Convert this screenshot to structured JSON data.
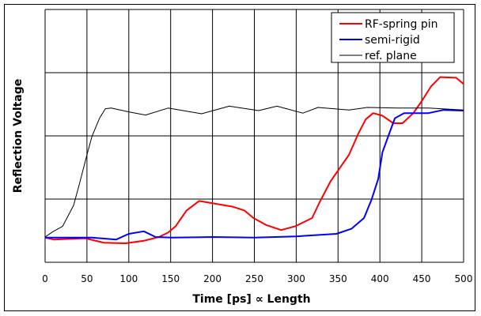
{
  "chart_data": {
    "type": "line",
    "title": "",
    "xlabel": "Time [ps]  ∝  Length",
    "ylabel": "Reflection Voltage",
    "xlim": [
      0,
      500
    ],
    "ylim": [
      0,
      4
    ],
    "xticks": [
      0,
      50,
      100,
      150,
      200,
      250,
      300,
      350,
      400,
      450,
      500
    ],
    "xtick_labels": [
      "0",
      "50",
      "100",
      "150",
      "200",
      "250",
      "300",
      "350",
      "400",
      "450",
      "500"
    ],
    "yticks": [
      0,
      1,
      2,
      3,
      4
    ],
    "grid": true,
    "legend_position": "top-right",
    "series": [
      {
        "name": "RF-spring pin",
        "color": "#ff0000",
        "x": [
          0,
          10,
          48,
          70,
          96,
          118,
          136,
          147,
          156,
          169,
          184,
          202,
          224,
          238,
          249,
          264,
          282,
          299,
          319,
          328,
          341,
          352,
          363,
          374,
          383,
          392,
          403,
          416,
          427,
          440,
          450,
          461,
          472,
          491,
          500
        ],
        "y": [
          0.39,
          0.36,
          0.38,
          0.31,
          0.3,
          0.34,
          0.4,
          0.47,
          0.57,
          0.82,
          0.97,
          0.93,
          0.88,
          0.82,
          0.7,
          0.59,
          0.51,
          0.57,
          0.7,
          0.95,
          1.28,
          1.49,
          1.7,
          2.03,
          2.26,
          2.36,
          2.32,
          2.2,
          2.2,
          2.36,
          2.55,
          2.78,
          2.93,
          2.92,
          2.82
        ]
      },
      {
        "name": "semi-rigid",
        "color": "#0000ff",
        "x": [
          0,
          56,
          85,
          100,
          118,
          132,
          151,
          200,
          250,
          300,
          348,
          366,
          381,
          390,
          398,
          403,
          411,
          418,
          429,
          458,
          476,
          500
        ],
        "y": [
          0.39,
          0.39,
          0.36,
          0.45,
          0.49,
          0.4,
          0.39,
          0.4,
          0.39,
          0.41,
          0.45,
          0.53,
          0.7,
          0.99,
          1.32,
          1.74,
          2.03,
          2.28,
          2.36,
          2.36,
          2.41,
          2.4
        ]
      },
      {
        "name": "ref. plane",
        "color": "#000000",
        "x": [
          0,
          10,
          21,
          34,
          41,
          50,
          56,
          65,
          72,
          79,
          100,
          120,
          147,
          187,
          220,
          255,
          277,
          308,
          326,
          363,
          385,
          421,
          458,
          500
        ],
        "y": [
          0.4,
          0.49,
          0.57,
          0.9,
          1.24,
          1.7,
          1.99,
          2.28,
          2.43,
          2.44,
          2.38,
          2.33,
          2.44,
          2.35,
          2.47,
          2.4,
          2.47,
          2.36,
          2.45,
          2.41,
          2.45,
          2.44,
          2.44,
          2.41
        ]
      }
    ]
  }
}
